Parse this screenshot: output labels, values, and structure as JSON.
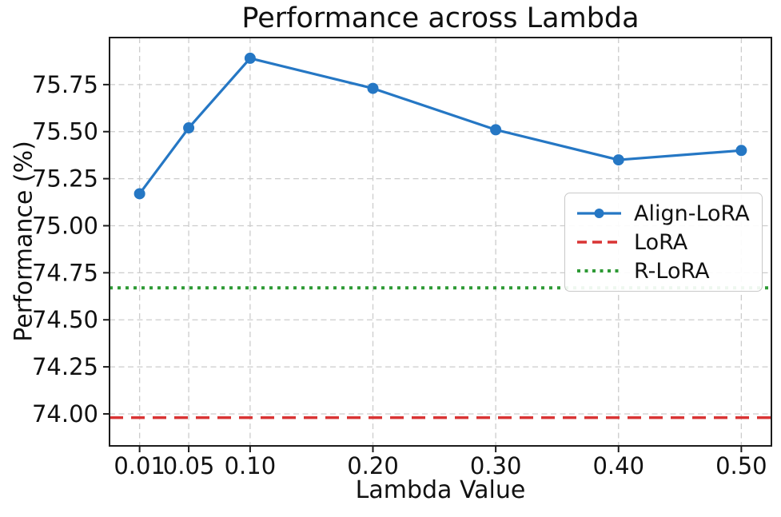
{
  "chart_data": {
    "type": "line",
    "title": "Performance across Lambda",
    "xlabel": "Lambda Value",
    "ylabel": "Performance (%)",
    "xlim": [
      -0.0145,
      0.5245
    ],
    "ylim": [
      73.83,
      76.0
    ],
    "x_ticks": [
      0.01,
      0.05,
      0.1,
      0.2,
      0.3,
      0.4,
      0.5
    ],
    "x_tick_labels": [
      "0.01",
      "0.05",
      "0.10",
      "0.20",
      "0.30",
      "0.40",
      "0.50"
    ],
    "y_ticks": [
      74.0,
      74.25,
      74.5,
      74.75,
      75.0,
      75.25,
      75.5,
      75.75
    ],
    "y_tick_labels": [
      "74.00",
      "74.25",
      "74.50",
      "74.75",
      "75.00",
      "75.25",
      "75.50",
      "75.75"
    ],
    "grid": true,
    "grid_color": "#cccccc",
    "spine_color": "#1c1c1c",
    "legend_position": "center right",
    "series": [
      {
        "name": "Align-LoRA",
        "type": "line",
        "marker": "circle",
        "linestyle": "solid",
        "color": "#2577c4",
        "x": [
          0.01,
          0.05,
          0.1,
          0.2,
          0.3,
          0.4,
          0.5
        ],
        "y": [
          75.17,
          75.52,
          75.89,
          75.73,
          75.51,
          75.35,
          75.4
        ]
      },
      {
        "name": "LoRA",
        "type": "hline",
        "linestyle": "dashed",
        "color": "#d93434",
        "y": 73.98
      },
      {
        "name": "R-LoRA",
        "type": "hline",
        "linestyle": "dotted",
        "color": "#2e9a35",
        "y": 74.67
      }
    ]
  }
}
